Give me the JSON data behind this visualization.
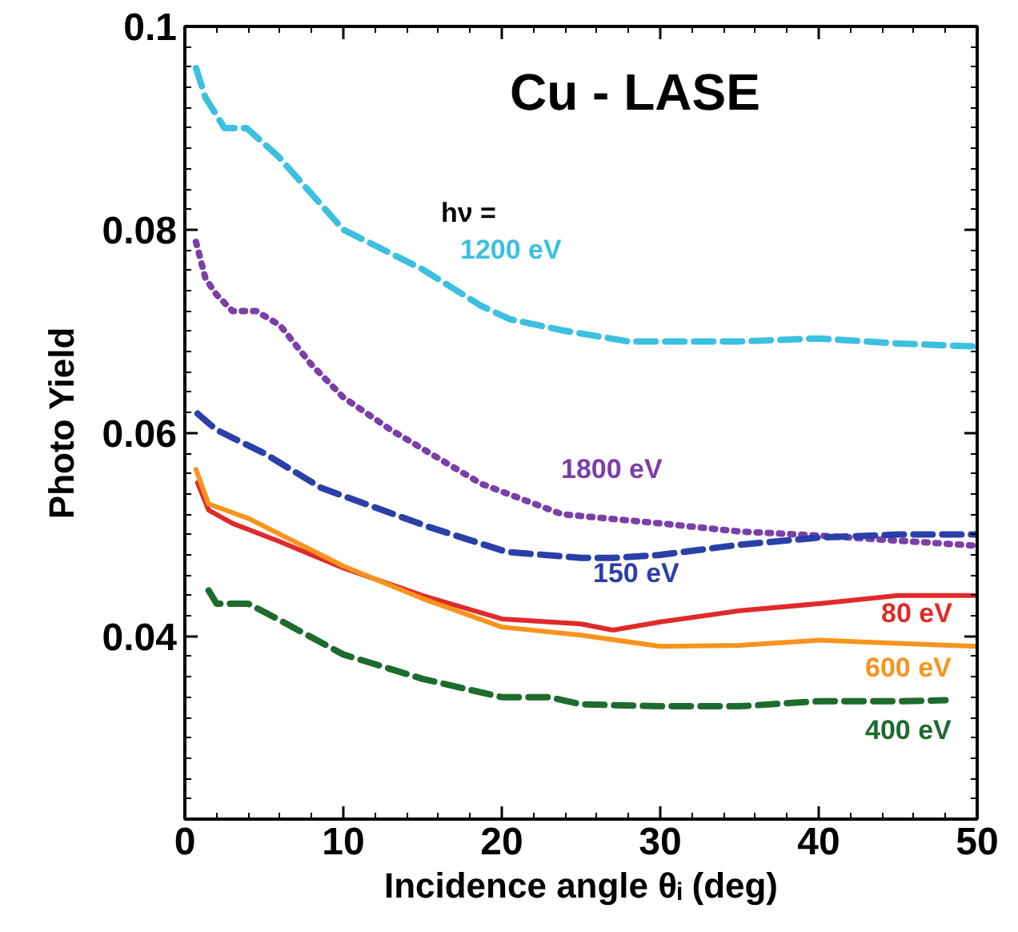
{
  "chart_data": {
    "type": "line",
    "title": "Cu - LASE",
    "xlabel": "Incidence angle θᵢ (deg)",
    "ylabel": "Photo Yield",
    "annotations": [
      "hν ="
    ],
    "xlim": [
      0,
      50
    ],
    "ylim": [
      0.022,
      0.1
    ],
    "xticks": [
      0,
      10,
      20,
      30,
      40,
      50
    ],
    "yticks": [
      0.04,
      0.06,
      0.08,
      0.1
    ],
    "grid": false,
    "marker": "none",
    "series": [
      {
        "name": "1200 eV",
        "color": "#3dbfe0",
        "line_style": "dashed",
        "x": [
          0.7,
          1.3,
          2.5,
          3.9,
          5.9,
          10,
          15,
          18.7,
          20.5,
          23.8,
          28,
          35,
          40,
          45,
          50
        ],
        "values": [
          0.0959,
          0.093,
          0.09,
          0.09,
          0.0872,
          0.08,
          0.0761,
          0.0725,
          0.0712,
          0.0701,
          0.069,
          0.069,
          0.0693,
          0.0688,
          0.0685
        ]
      },
      {
        "name": "1800 eV",
        "color": "#7b3fa8",
        "line_style": "dotted",
        "x": [
          0.7,
          1.3,
          2,
          3,
          4.5,
          6,
          8,
          10,
          13,
          18.7,
          23.8,
          30,
          35,
          40,
          45,
          50
        ],
        "values": [
          0.0788,
          0.0752,
          0.0736,
          0.072,
          0.072,
          0.0706,
          0.0667,
          0.0635,
          0.0603,
          0.055,
          0.052,
          0.0511,
          0.0503,
          0.0499,
          0.0494,
          0.0489
        ]
      },
      {
        "name": "150 eV",
        "color": "#2a3fa8",
        "line_style": "dashed",
        "x": [
          0.8,
          2,
          5,
          8.6,
          15.3,
          20.3,
          25,
          27,
          30,
          35,
          40,
          45,
          50
        ],
        "values": [
          0.0619,
          0.0603,
          0.058,
          0.0546,
          0.0508,
          0.0483,
          0.0477,
          0.0477,
          0.048,
          0.049,
          0.0497,
          0.05,
          0.05
        ]
      },
      {
        "name": "80 eV",
        "color": "#e02a2a",
        "line_style": "solid",
        "x": [
          0.8,
          1.5,
          3,
          6,
          10,
          15,
          20,
          22,
          25,
          27,
          30,
          35,
          40,
          45,
          50
        ],
        "values": [
          0.0551,
          0.0524,
          0.0511,
          0.0493,
          0.0467,
          0.044,
          0.0417,
          0.0415,
          0.0412,
          0.0406,
          0.0414,
          0.0425,
          0.0432,
          0.044,
          0.044
        ]
      },
      {
        "name": "600 eV",
        "color": "#f7941d",
        "line_style": "solid",
        "x": [
          0.7,
          1.5,
          4,
          10,
          15,
          20,
          25,
          30,
          35,
          40,
          45,
          50
        ],
        "values": [
          0.0564,
          0.053,
          0.0516,
          0.0469,
          0.0437,
          0.0409,
          0.0401,
          0.039,
          0.0391,
          0.0396,
          0.0393,
          0.039
        ]
      },
      {
        "name": "400 eV",
        "color": "#1e6b2e",
        "line_style": "dashed",
        "x": [
          1.5,
          2,
          4,
          5.6,
          10,
          15,
          20,
          23,
          25,
          30,
          35,
          40,
          45,
          48
        ],
        "values": [
          0.0445,
          0.0432,
          0.0432,
          0.0419,
          0.0382,
          0.0358,
          0.034,
          0.034,
          0.0333,
          0.0331,
          0.0331,
          0.0336,
          0.0336,
          0.0337
        ]
      }
    ]
  }
}
